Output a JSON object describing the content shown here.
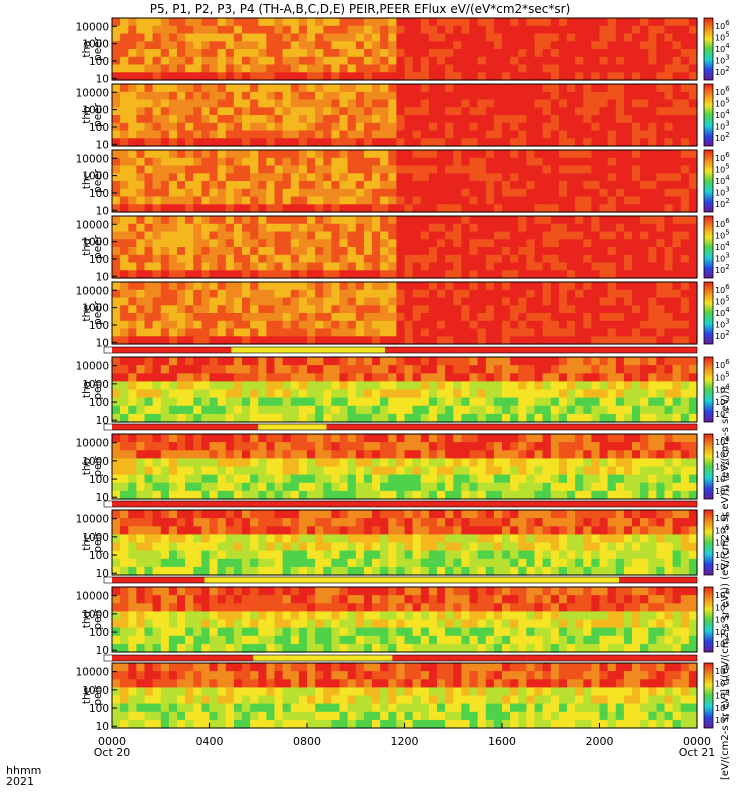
{
  "title": "P5, P1, P2, P3, P4 (TH-A,B,C,D,E) PEIR,PEER EFlux eV/(eV*cm2*sec*sr)",
  "time_axis": {
    "row1_label": "hhmm",
    "row2_label": "2021",
    "ticks": [
      {
        "t": 0,
        "label": "0000",
        "date": "Oct 20"
      },
      {
        "t": 4,
        "label": "0400",
        "date": ""
      },
      {
        "t": 8,
        "label": "0800",
        "date": ""
      },
      {
        "t": 12,
        "label": "1200",
        "date": ""
      },
      {
        "t": 16,
        "label": "1600",
        "date": ""
      },
      {
        "t": 20,
        "label": "2000",
        "date": ""
      },
      {
        "t": 24,
        "label": "0000",
        "date": "Oct 21"
      }
    ]
  },
  "colorbar_label": "[eV/(cm2-s sr eV)] (((eV/(cm2-s sr eV))) (eV/(cm2-s sr eV))) (eV/(cm2-s sr eV)))",
  "colors": {
    "red": "#e8241c",
    "orange": "#f08a1e",
    "yellow": "#f4e423",
    "green": "#4fd24a",
    "cyan": "#20d3d3",
    "blue": "#2a43e0",
    "purple": "#6a1a9a",
    "black": "#000000"
  },
  "chart_data": {
    "type": "heatmap",
    "x_units": "UT hours",
    "xlim": [
      0,
      24
    ],
    "y_scale": "log",
    "ylim": [
      8,
      30000
    ],
    "y_ticks": [
      "10",
      "100",
      "1000",
      "10000"
    ],
    "panels": [
      {
        "label_top": "tha",
        "label_bottom": "peer",
        "cbar_ticks": [
          "10^6",
          "10^5",
          "10^4",
          "10^3",
          "10^2"
        ]
      },
      {
        "label_top": "thb",
        "label_bottom": "peer",
        "cbar_ticks": [
          "10^6",
          "10^5",
          "10^4",
          "10^3",
          "10^2"
        ]
      },
      {
        "label_top": "thc",
        "label_bottom": "peer",
        "cbar_ticks": [
          "10^6",
          "10^5",
          "10^4",
          "10^3",
          "10^2"
        ]
      },
      {
        "label_top": "thd",
        "label_bottom": "peer",
        "cbar_ticks": [
          "10^6",
          "10^5",
          "10^4",
          "10^3",
          "10^2"
        ]
      },
      {
        "label_top": "the",
        "label_bottom": "peer",
        "cbar_ticks": [
          "10^6",
          "10^5",
          "10^4",
          "10^3",
          "10^2"
        ]
      },
      {
        "label_top": "tha",
        "label_bottom": "peir",
        "cbar_ticks": [
          "10^6",
          "10^5",
          "10^4",
          "10^3",
          "10^2"
        ]
      },
      {
        "label_top": "thb",
        "label_bottom": "peir",
        "cbar_ticks": [
          "10^6",
          "10^5",
          "10^4",
          "10^3",
          "10^2"
        ]
      },
      {
        "label_top": "thc",
        "label_bottom": "peir",
        "cbar_ticks": [
          "10^6",
          "10^5",
          "10^4",
          "10^3",
          "10^2"
        ]
      },
      {
        "label_top": "thd",
        "label_bottom": "peir",
        "cbar_ticks": [
          "10^6",
          "10^5",
          "10^4",
          "10^3",
          "10^2"
        ]
      },
      {
        "label_top": "the",
        "label_bottom": "peir",
        "cbar_ticks": [
          "10^6",
          "10^5",
          "10^4",
          "10^3",
          "10^2"
        ]
      }
    ],
    "mode_bars": [
      {
        "segments": [
          {
            "from": 0,
            "to": 4.9,
            "color": "red"
          },
          {
            "from": 4.9,
            "to": 11.2,
            "color": "yellow"
          },
          {
            "from": 11.2,
            "to": 24,
            "color": "red"
          }
        ]
      },
      {
        "segments": [
          {
            "from": 0,
            "to": 6.0,
            "color": "red"
          },
          {
            "from": 6.0,
            "to": 8.8,
            "color": "yellow"
          },
          {
            "from": 8.8,
            "to": 24,
            "color": "red"
          }
        ]
      },
      {
        "segments": [
          {
            "from": 0,
            "to": 24,
            "color": "red"
          }
        ]
      },
      {
        "segments": [
          {
            "from": 0,
            "to": 3.8,
            "color": "red"
          },
          {
            "from": 3.8,
            "to": 20.8,
            "color": "yellow"
          },
          {
            "from": 20.8,
            "to": 24,
            "color": "red"
          }
        ]
      },
      {
        "segments": [
          {
            "from": 0,
            "to": 5.8,
            "color": "red"
          },
          {
            "from": 5.8,
            "to": 11.5,
            "color": "yellow"
          },
          {
            "from": 11.5,
            "to": 17.0,
            "color": "red"
          },
          {
            "from": 17.0,
            "to": 24,
            "color": "red"
          }
        ]
      }
    ]
  }
}
